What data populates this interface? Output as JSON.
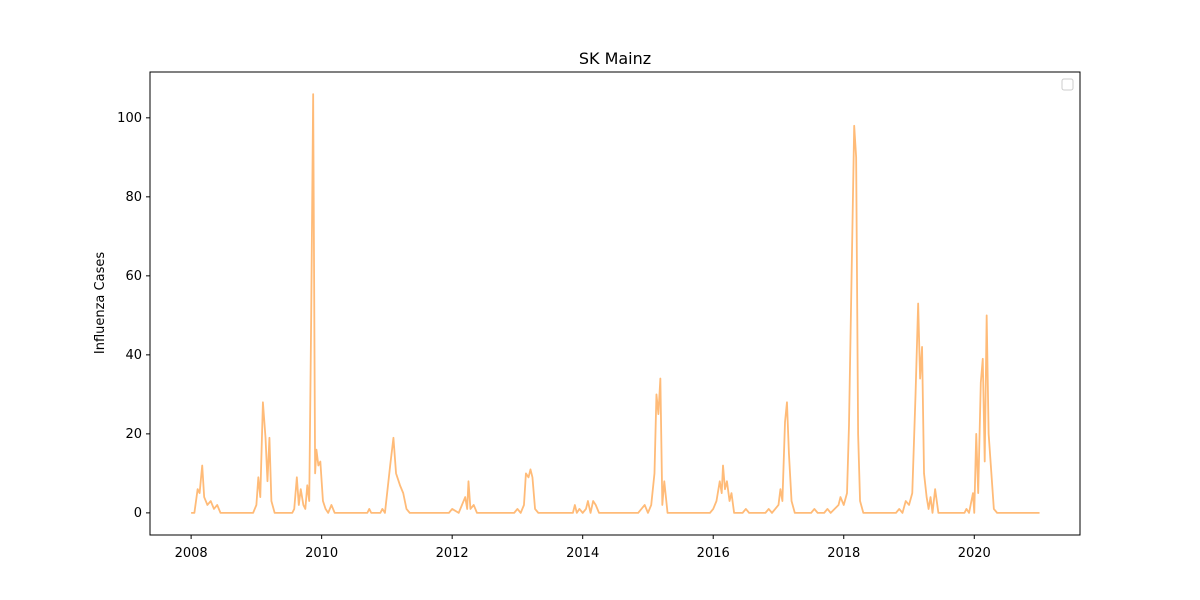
{
  "chart_data": {
    "type": "line",
    "title": "SK Mainz",
    "y_label": "Influenza Cases",
    "x": [
      2008.0,
      2008.05,
      2008.1,
      2008.13,
      2008.17,
      2008.2,
      2008.25,
      2008.3,
      2008.35,
      2008.4,
      2008.45,
      2008.95,
      2009.0,
      2009.03,
      2009.06,
      2009.1,
      2009.14,
      2009.17,
      2009.2,
      2009.23,
      2009.28,
      2009.55,
      2009.58,
      2009.62,
      2009.65,
      2009.68,
      2009.72,
      2009.75,
      2009.78,
      2009.81,
      2009.84,
      2009.87,
      2009.9,
      2009.92,
      2009.95,
      2009.98,
      2010.02,
      2010.06,
      2010.1,
      2010.15,
      2010.2,
      2010.7,
      2010.73,
      2010.76,
      2010.9,
      2010.93,
      2010.97,
      2011.05,
      2011.1,
      2011.14,
      2011.2,
      2011.25,
      2011.3,
      2011.35,
      2011.95,
      2012.0,
      2012.1,
      2012.15,
      2012.2,
      2012.23,
      2012.25,
      2012.28,
      2012.33,
      2012.38,
      2012.95,
      2013.0,
      2013.05,
      2013.1,
      2013.13,
      2013.17,
      2013.2,
      2013.23,
      2013.27,
      2013.32,
      2013.85,
      2013.88,
      2013.91,
      2013.95,
      2014.0,
      2014.05,
      2014.08,
      2014.12,
      2014.16,
      2014.2,
      2014.25,
      2014.85,
      2014.9,
      2014.95,
      2015.0,
      2015.05,
      2015.1,
      2015.13,
      2015.16,
      2015.19,
      2015.22,
      2015.25,
      2015.3,
      2015.95,
      2016.0,
      2016.05,
      2016.1,
      2016.13,
      2016.15,
      2016.18,
      2016.21,
      2016.25,
      2016.28,
      2016.32,
      2016.45,
      2016.5,
      2016.55,
      2016.8,
      2016.85,
      2016.9,
      2016.95,
      2017.0,
      2017.03,
      2017.06,
      2017.1,
      2017.13,
      2017.16,
      2017.2,
      2017.25,
      2017.5,
      2017.55,
      2017.6,
      2017.7,
      2017.75,
      2017.8,
      2017.92,
      2017.95,
      2018.0,
      2018.05,
      2018.08,
      2018.12,
      2018.16,
      2018.19,
      2018.22,
      2018.25,
      2018.3,
      2018.8,
      2018.85,
      2018.9,
      2018.95,
      2019.0,
      2019.05,
      2019.1,
      2019.14,
      2019.17,
      2019.2,
      2019.23,
      2019.27,
      2019.3,
      2019.33,
      2019.36,
      2019.4,
      2019.45,
      2019.85,
      2019.88,
      2019.92,
      2019.98,
      2020.0,
      2020.03,
      2020.06,
      2020.1,
      2020.13,
      2020.16,
      2020.19,
      2020.22,
      2020.3,
      2020.35,
      2021.0
    ],
    "values": [
      0,
      0,
      6,
      5,
      12,
      4,
      2,
      3,
      1,
      2,
      0,
      0,
      2,
      9,
      4,
      28,
      19,
      8,
      19,
      3,
      0,
      0,
      1,
      9,
      2,
      6,
      2,
      1,
      7,
      3,
      50,
      106,
      10,
      16,
      12,
      13,
      3,
      1,
      0,
      2,
      0,
      0,
      1,
      0,
      0,
      1,
      0,
      12,
      19,
      10,
      7,
      5,
      1,
      0,
      0,
      1,
      0,
      2,
      4,
      1,
      8,
      1,
      2,
      0,
      0,
      1,
      0,
      2,
      10,
      9,
      11,
      9,
      1,
      0,
      0,
      2,
      0,
      1,
      0,
      1,
      3,
      0,
      3,
      2,
      0,
      0,
      1,
      2,
      0,
      2,
      10,
      30,
      25,
      34,
      2,
      8,
      0,
      0,
      1,
      3,
      8,
      5,
      12,
      6,
      8,
      3,
      5,
      0,
      0,
      1,
      0,
      0,
      1,
      0,
      1,
      2,
      6,
      3,
      23,
      28,
      15,
      3,
      0,
      0,
      1,
      0,
      0,
      1,
      0,
      2,
      4,
      2,
      5,
      22,
      60,
      98,
      90,
      20,
      3,
      0,
      0,
      1,
      0,
      3,
      2,
      5,
      30,
      53,
      34,
      42,
      10,
      4,
      1,
      4,
      0,
      6,
      0,
      0,
      1,
      0,
      5,
      0,
      20,
      5,
      33,
      39,
      13,
      50,
      20,
      1,
      0,
      0
    ],
    "color": "#ffbb78",
    "xlim": [
      2007.37,
      2021.62
    ],
    "xticks": [
      2008,
      2010,
      2012,
      2014,
      2016,
      2018,
      2020
    ],
    "ylim": [
      -5.6,
      111.6
    ],
    "yticks": [
      0,
      20,
      40,
      60,
      80,
      100
    ],
    "grid": false,
    "legend": "upper right"
  }
}
